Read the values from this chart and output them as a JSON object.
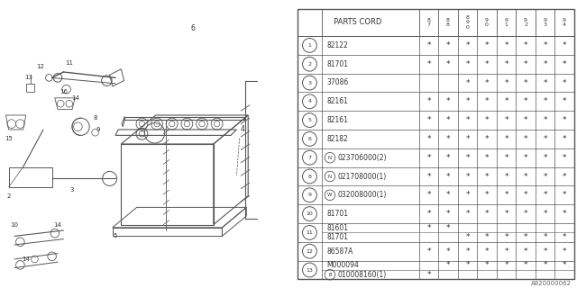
{
  "watermark": "A820000062",
  "rows": [
    {
      "num": "1",
      "part": "82122",
      "prefix": "",
      "cols": [
        "*",
        "*",
        "*",
        "*",
        "*",
        "*",
        "*",
        "*"
      ]
    },
    {
      "num": "2",
      "part": "81701",
      "prefix": "",
      "cols": [
        "*",
        "*",
        "*",
        "*",
        "*",
        "*",
        "*",
        "*"
      ]
    },
    {
      "num": "3",
      "part": "37086",
      "prefix": "",
      "cols": [
        " ",
        " ",
        "*",
        "*",
        "*",
        "*",
        "*",
        "*"
      ]
    },
    {
      "num": "4",
      "part": "82161",
      "prefix": "",
      "cols": [
        "*",
        "*",
        "*",
        "*",
        "*",
        "*",
        "*",
        "*"
      ]
    },
    {
      "num": "5",
      "part": "82161",
      "prefix": "",
      "cols": [
        "*",
        "*",
        "*",
        "*",
        "*",
        "*",
        "*",
        "*"
      ]
    },
    {
      "num": "6",
      "part": "82182",
      "prefix": "",
      "cols": [
        "*",
        "*",
        "*",
        "*",
        "*",
        "*",
        "*",
        "*"
      ]
    },
    {
      "num": "7",
      "part": "023706000(2)",
      "prefix": "N",
      "cols": [
        "*",
        "*",
        "*",
        "*",
        "*",
        "*",
        "*",
        "*"
      ]
    },
    {
      "num": "8",
      "part": "021708000(1)",
      "prefix": "N",
      "cols": [
        "*",
        "*",
        "*",
        "*",
        "*",
        "*",
        "*",
        "*"
      ]
    },
    {
      "num": "9",
      "part": "032008000(1)",
      "prefix": "W",
      "cols": [
        "*",
        "*",
        "*",
        "*",
        "*",
        "*",
        "*",
        "*"
      ]
    },
    {
      "num": "10",
      "part": "81701",
      "prefix": "",
      "cols": [
        "*",
        "*",
        "*",
        "*",
        "*",
        "*",
        "*",
        "*"
      ]
    },
    {
      "num": "11",
      "part_a": "81601",
      "prefix_a": "",
      "cols_a": [
        "*",
        "*",
        " ",
        " ",
        " ",
        " ",
        " ",
        " "
      ],
      "part_b": "81701",
      "prefix_b": "",
      "cols_b": [
        " ",
        " ",
        "*",
        "*",
        "*",
        "*",
        "*",
        "*"
      ],
      "type": "double"
    },
    {
      "num": "12",
      "part": "86587A",
      "prefix": "",
      "cols": [
        "*",
        "*",
        "*",
        "*",
        "*",
        "*",
        "*",
        "*"
      ]
    },
    {
      "num": "13",
      "part_a": "M000094",
      "prefix_a": "",
      "cols_a": [
        " ",
        "*",
        "*",
        "*",
        "*",
        "*",
        "*",
        "*"
      ],
      "part_b": "010008160(1)",
      "prefix_b": "B",
      "cols_b": [
        "*",
        " ",
        " ",
        " ",
        " ",
        " ",
        " ",
        " "
      ],
      "type": "double"
    }
  ],
  "header_years": [
    "8\n7",
    "8\n8",
    "8\n9\n0",
    "9\n0",
    "9\n1",
    "9\n2",
    "9\n3",
    "9\n4"
  ],
  "bg_color": "#ffffff",
  "line_color": "#555555",
  "text_color": "#333333"
}
